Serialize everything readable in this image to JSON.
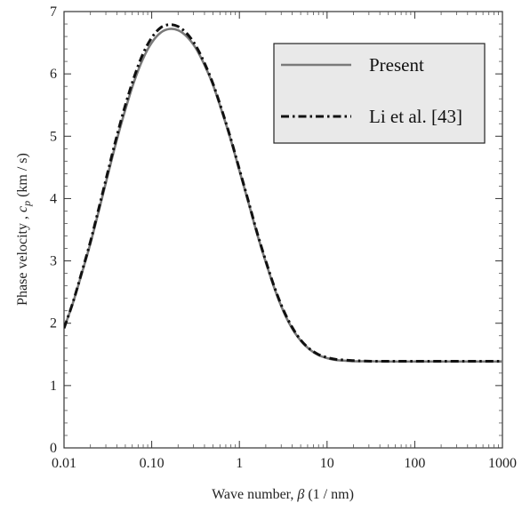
{
  "chart_data": {
    "type": "line",
    "xscale": "log",
    "xlim": [
      0.01,
      1000
    ],
    "ylim": [
      0,
      7
    ],
    "xticks": [
      {
        "value": 0.01,
        "label": "0.01"
      },
      {
        "value": 0.1,
        "label": "0.10"
      },
      {
        "value": 1,
        "label": "1"
      },
      {
        "value": 10,
        "label": "10"
      },
      {
        "value": 100,
        "label": "100"
      },
      {
        "value": 1000,
        "label": "1000"
      }
    ],
    "yticks": [
      0,
      1,
      2,
      3,
      4,
      5,
      6,
      7
    ],
    "xlabel": "Wave number,  β (1 / nm)",
    "ylabel": "Phase velocity ,  c_p  (km / s)",
    "grid": false,
    "legend_position": "top-right",
    "series": [
      {
        "name": "Present",
        "color": "#7a7a7a",
        "style": "solid",
        "x": [
          0.01,
          0.0126,
          0.0158,
          0.02,
          0.0251,
          0.0316,
          0.0398,
          0.0501,
          0.0631,
          0.0794,
          0.1,
          0.126,
          0.158,
          0.2,
          0.251,
          0.316,
          0.398,
          0.501,
          0.631,
          0.794,
          1,
          1.26,
          1.58,
          2,
          2.51,
          3.16,
          3.98,
          5.01,
          6.31,
          7.94,
          10,
          12.6,
          15.8,
          20,
          25.1,
          31.6,
          50,
          100,
          200,
          500,
          1000
        ],
        "y": [
          1.92,
          2.32,
          2.78,
          3.28,
          3.82,
          4.38,
          4.93,
          5.43,
          5.88,
          6.24,
          6.5,
          6.66,
          6.72,
          6.7,
          6.6,
          6.42,
          6.15,
          5.82,
          5.4,
          4.95,
          4.45,
          3.95,
          3.45,
          2.98,
          2.56,
          2.2,
          1.92,
          1.72,
          1.58,
          1.49,
          1.44,
          1.41,
          1.4,
          1.39,
          1.39,
          1.39,
          1.385,
          1.385,
          1.385,
          1.385,
          1.385
        ]
      },
      {
        "name": "Li et al. [43]",
        "color": "#111111",
        "style": "dash-dot",
        "x": [
          0.01,
          0.0126,
          0.0158,
          0.02,
          0.0251,
          0.0316,
          0.0398,
          0.0501,
          0.0631,
          0.0794,
          0.1,
          0.126,
          0.158,
          0.2,
          0.251,
          0.316,
          0.398,
          0.501,
          0.631,
          0.794,
          1,
          1.26,
          1.58,
          2,
          2.51,
          3.16,
          3.98,
          5.01,
          6.31,
          7.94,
          10,
          12.6,
          15.8,
          20,
          25.1,
          31.6,
          50,
          100,
          200,
          500,
          1000
        ],
        "y": [
          1.92,
          2.33,
          2.8,
          3.31,
          3.86,
          4.43,
          4.99,
          5.5,
          5.95,
          6.32,
          6.58,
          6.74,
          6.79,
          6.76,
          6.65,
          6.46,
          6.18,
          5.84,
          5.42,
          4.97,
          4.47,
          3.97,
          3.47,
          3.0,
          2.58,
          2.22,
          1.94,
          1.73,
          1.59,
          1.5,
          1.45,
          1.42,
          1.41,
          1.4,
          1.395,
          1.39,
          1.39,
          1.39,
          1.39,
          1.39,
          1.39
        ]
      }
    ]
  },
  "legend": {
    "items": [
      {
        "label": "Present",
        "color": "#7a7a7a",
        "style": "solid"
      },
      {
        "label": "Li et al. [43]",
        "color": "#111111",
        "style": "dash-dot"
      }
    ]
  },
  "axis": {
    "xlabel_prefix": "Wave number,  ",
    "xlabel_beta": "β",
    "xlabel_unit": " (1 / nm)",
    "ylabel_prefix": "Phase velocity ,  ",
    "ylabel_c": "c",
    "ylabel_sub": "p",
    "ylabel_unit": "  (km / s)"
  }
}
